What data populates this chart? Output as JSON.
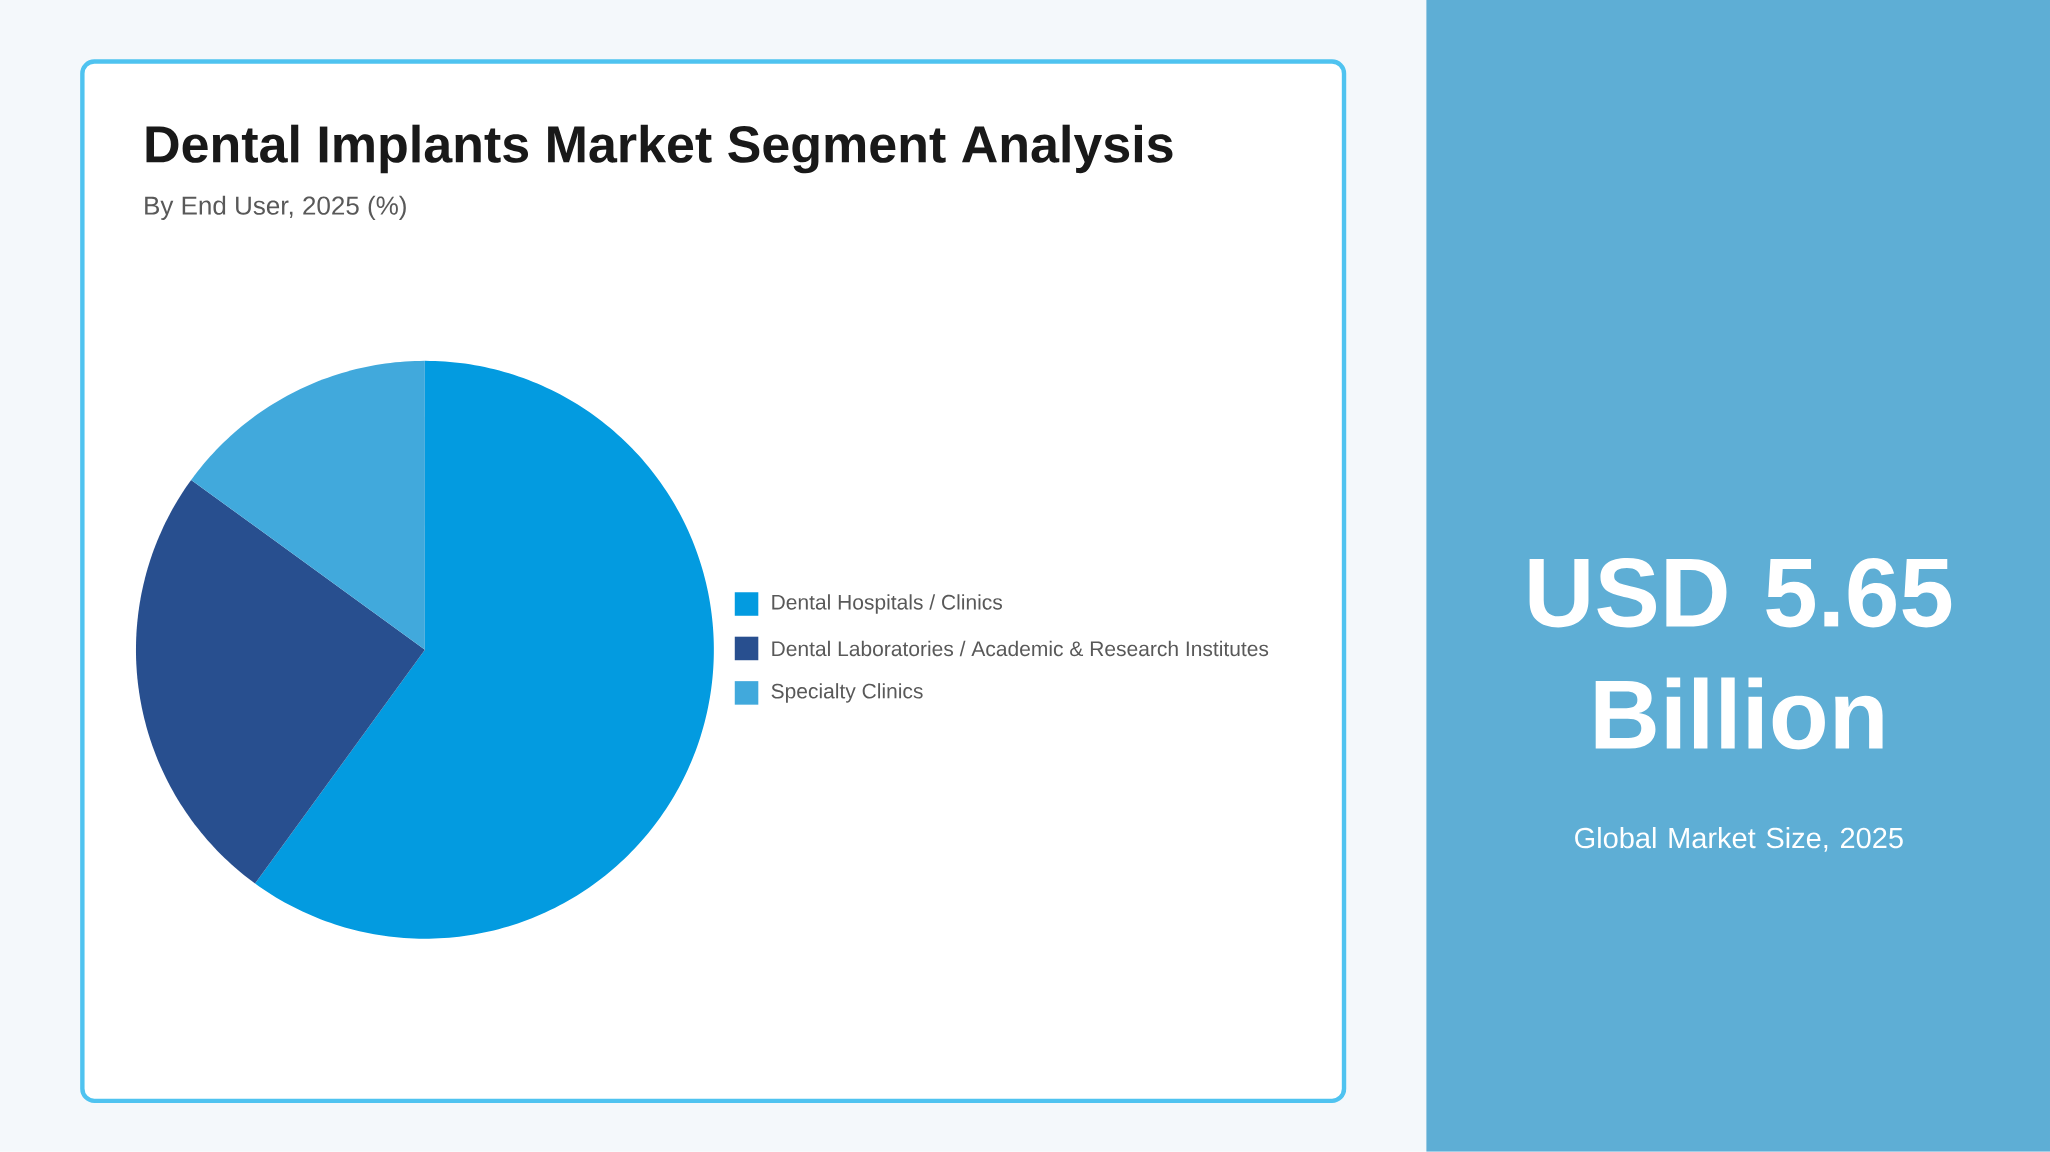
{
  "chart_data": {
    "type": "pie",
    "title": "Dental Implants Market Segment Analysis",
    "subtitle": "By End User, 2025 (%)",
    "categories": [
      "Dental Hospitals / Clinics",
      "Dental Laboratories / Academic & Research Institutes",
      "Specialty Clinics"
    ],
    "values": [
      60,
      25,
      15
    ],
    "colors": [
      "#039be0",
      "#284f8f",
      "#41a9dc"
    ],
    "legend": "right",
    "annotations": [
      "USD 5.65 Billion",
      "Global Market Size, 2025"
    ]
  }
}
